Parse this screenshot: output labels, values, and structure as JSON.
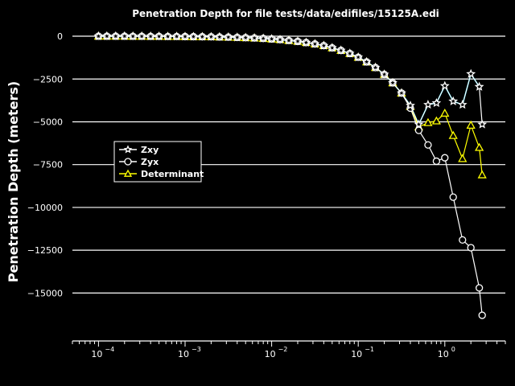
{
  "chart_data": {
    "type": "line",
    "title": "Penetration Depth for file tests/data/edifiles/15125A.edi",
    "xlabel": "",
    "ylabel": "Penetration Depth (meters)",
    "xscale": "log",
    "xlim": [
      5e-05,
      5
    ],
    "ylim": [
      -17800,
      800
    ],
    "grid": "horizontal",
    "legend_position": "center-left",
    "xticks": [
      {
        "value": 0.0001,
        "base": "10",
        "exp": "−4"
      },
      {
        "value": 0.001,
        "base": "10",
        "exp": "−3"
      },
      {
        "value": 0.01,
        "base": "10",
        "exp": "−2"
      },
      {
        "value": 0.1,
        "base": "10",
        "exp": "−1"
      },
      {
        "value": 1,
        "base": "10",
        "exp": "0"
      }
    ],
    "yticks": [
      0,
      -2500,
      -5000,
      -7500,
      -10000,
      -12500,
      -15000
    ],
    "ytick_labels": [
      "0",
      "−2500",
      "−5000",
      "−7500",
      "−10000",
      "−12500",
      "−15000"
    ],
    "colors": {
      "zxy": "#ffffff",
      "zyx": "#ffffff",
      "det": "#ffff00",
      "cyan": "#00d8ff"
    },
    "x": [
      0.0001,
      0.000125,
      0.000158,
      0.0002,
      0.00025,
      0.000316,
      0.0004,
      0.0005,
      0.000632,
      0.0008,
      0.001,
      0.00125,
      0.00158,
      0.002,
      0.0025,
      0.00316,
      0.004,
      0.005,
      0.00632,
      0.008,
      0.01,
      0.0125,
      0.0158,
      0.02,
      0.025,
      0.0316,
      0.04,
      0.05,
      0.0632,
      0.08,
      0.1,
      0.125,
      0.158,
      0.2,
      0.25,
      0.316,
      0.4,
      0.5,
      0.64,
      0.8,
      1.0,
      1.25,
      1.6,
      2.0,
      2.5
    ],
    "series": [
      {
        "name": "Zxy",
        "marker": "star",
        "values": [
          0,
          0,
          0,
          0,
          -5,
          -5,
          -10,
          -10,
          -15,
          -15,
          -20,
          -25,
          -30,
          -35,
          -45,
          -55,
          -70,
          -85,
          -105,
          -130,
          -160,
          -200,
          -250,
          -300,
          -370,
          -450,
          -550,
          -680,
          -830,
          -1010,
          -1230,
          -1500,
          -1830,
          -2230,
          -2720,
          -3320,
          -4050,
          -5150,
          -4000,
          -3900,
          -2900,
          -3800,
          -4000,
          -2200,
          -2950
        ]
      },
      {
        "name": "Zyx",
        "marker": "circle",
        "values": [
          0,
          0,
          0,
          0,
          -5,
          -5,
          -10,
          -10,
          -15,
          -15,
          -20,
          -25,
          -30,
          -35,
          -45,
          -55,
          -70,
          -85,
          -105,
          -130,
          -160,
          -200,
          -250,
          -300,
          -370,
          -450,
          -550,
          -680,
          -830,
          -1010,
          -1230,
          -1500,
          -1830,
          -2230,
          -2720,
          -3320,
          -4200,
          -5500,
          -6350,
          -7300,
          -7100,
          -9400,
          -11900,
          -12350,
          -14700
        ]
      },
      {
        "name": "Determinant",
        "marker": "triangle",
        "values": [
          0,
          0,
          0,
          0,
          -5,
          -5,
          -10,
          -10,
          -15,
          -15,
          -20,
          -25,
          -30,
          -35,
          -45,
          -55,
          -70,
          -85,
          -105,
          -130,
          -160,
          -200,
          -250,
          -300,
          -370,
          -450,
          -550,
          -680,
          -830,
          -1010,
          -1230,
          -1500,
          -1830,
          -2230,
          -2720,
          -3320,
          -4100,
          -5300,
          -5050,
          -4950,
          -4500,
          -5800,
          -7150,
          -5200,
          -6500
        ]
      }
    ],
    "tail": {
      "x": 2.7,
      "values": [
        -5150,
        -16300,
        -8100
      ]
    }
  }
}
